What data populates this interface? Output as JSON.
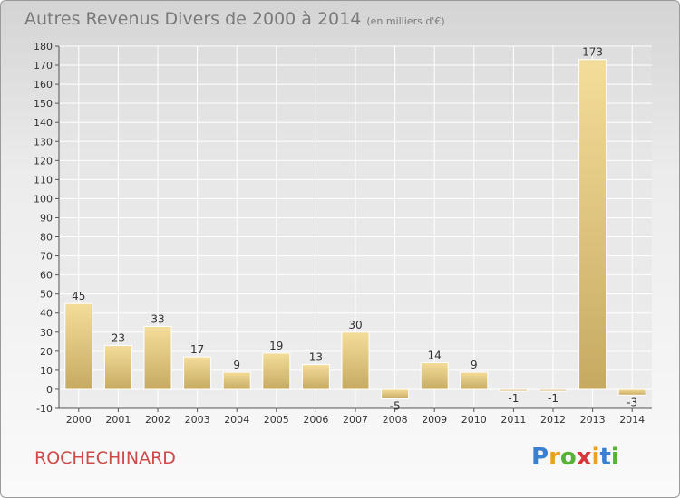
{
  "header": {
    "title": "Autres Revenus Divers de 2000 à 2014",
    "unit": "(en milliers d'€)"
  },
  "footer": {
    "commune": "ROCHECHINARD",
    "logo_letters": [
      "P",
      "r",
      "o",
      "x",
      "i",
      "t",
      "i"
    ]
  },
  "colors": {
    "bar": "#e8cc82",
    "commune_text": "#d04a4a",
    "axis_text": "#333333",
    "grid": "#ffffff"
  },
  "chart_data": {
    "type": "bar",
    "categories": [
      "2000",
      "2001",
      "2002",
      "2003",
      "2004",
      "2005",
      "2006",
      "2007",
      "2008",
      "2009",
      "2010",
      "2011",
      "2012",
      "2013",
      "2014"
    ],
    "values": [
      45,
      23,
      33,
      17,
      9,
      19,
      13,
      30,
      -5,
      14,
      9,
      -1,
      -1,
      173,
      -3
    ],
    "data_labels": [
      "45",
      "23",
      "33",
      "17",
      "9",
      "19",
      "13",
      "30",
      "-5",
      "14",
      "9",
      "-1",
      "-1",
      "173",
      "-3"
    ],
    "yticks": [
      "-10",
      "0",
      "10",
      "20",
      "30",
      "40",
      "50",
      "60",
      "70",
      "80",
      "90",
      "100",
      "110",
      "120",
      "130",
      "140",
      "150",
      "160",
      "170",
      "180"
    ],
    "ylim": [
      -10,
      180
    ],
    "grid": true,
    "legend": "none"
  }
}
